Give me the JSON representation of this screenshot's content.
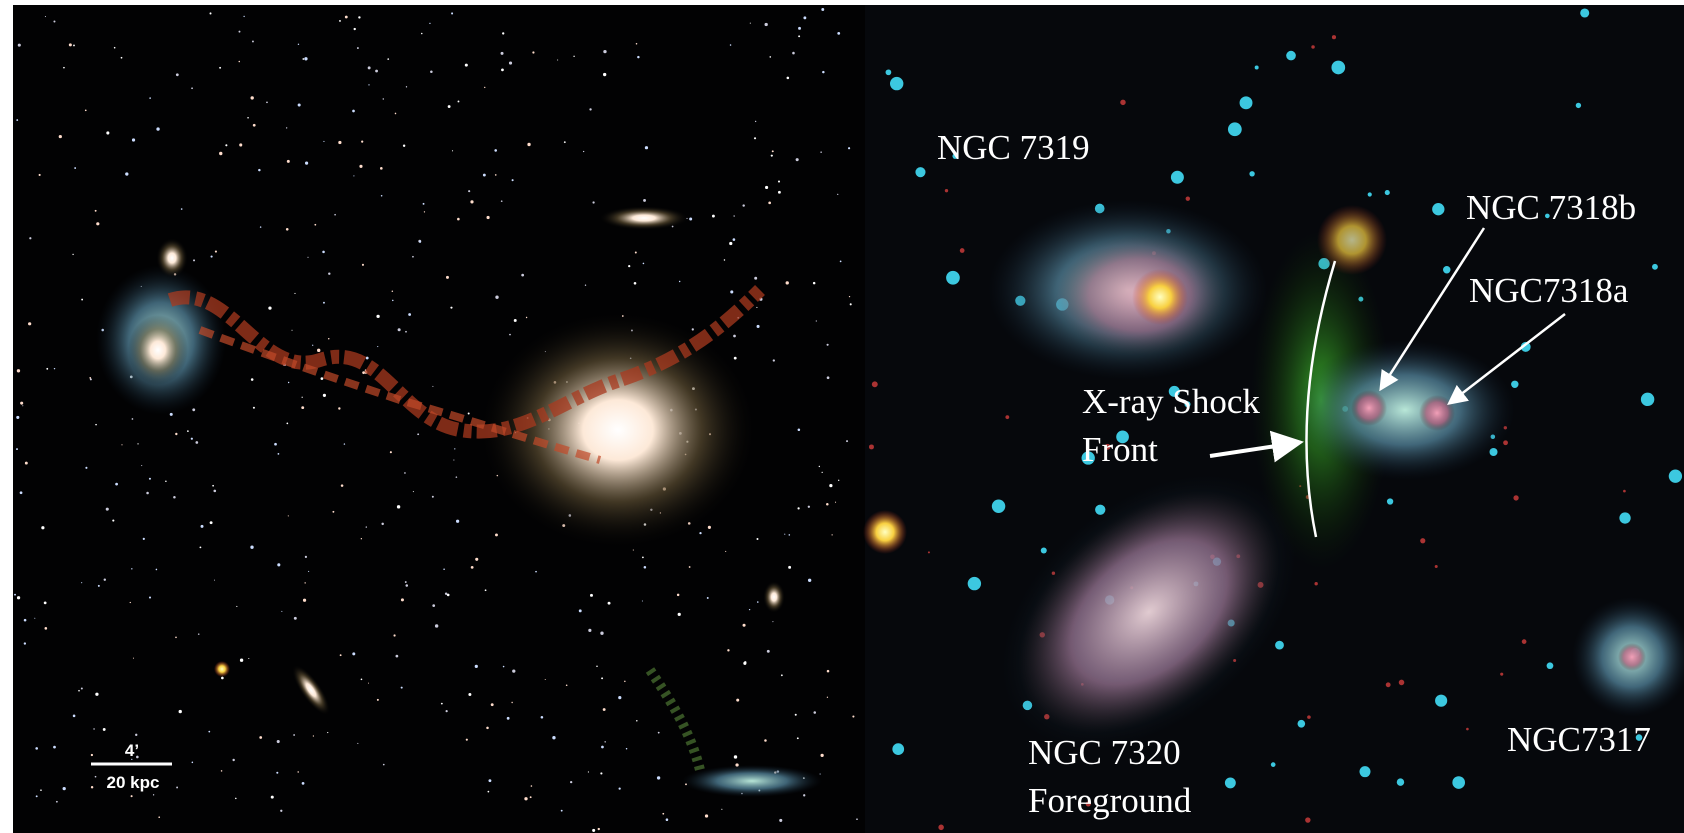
{
  "left_panel": {
    "scale_bar": {
      "angle": "4’",
      "distance": "20 kpc"
    }
  },
  "right_panel": {
    "labels": {
      "ngc7319": "NGC 7319",
      "ngc7318b": "NGC 7318b",
      "ngc7318a": "NGC7318a",
      "shock_line1": "X-ray Shock",
      "shock_line2": "Front",
      "ngc7320_line1": "NGC 7320",
      "ngc7320_line2": "Foreground",
      "ngc7317": "NGC7317"
    }
  }
}
